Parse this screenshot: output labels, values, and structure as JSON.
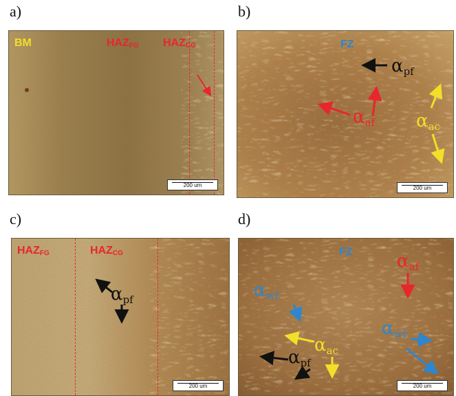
{
  "panels": {
    "a": {
      "letter": "a)",
      "labels": {
        "bm": {
          "base": "BM",
          "sub": ""
        },
        "haz_fg": {
          "base": "HAZ",
          "sub": "FG"
        },
        "haz_cg": {
          "base": "HAZ",
          "sub": "CG"
        }
      },
      "scale": "200 um"
    },
    "b": {
      "letter": "b)",
      "labels": {
        "fz": "FZ",
        "alpha_pf": {
          "base": "α",
          "sub": "pf"
        },
        "alpha_af": {
          "base": "α",
          "sub": "af"
        },
        "alpha_ac": {
          "base": "α",
          "sub": "ac"
        }
      },
      "scale": "200 um"
    },
    "c": {
      "letter": "c)",
      "labels": {
        "haz_fg": {
          "base": "HAZ",
          "sub": "FG"
        },
        "haz_cg": {
          "base": "HAZ",
          "sub": "CG"
        },
        "alpha_pf": {
          "base": "α",
          "sub": "pf"
        }
      },
      "scale": "200 um"
    },
    "d": {
      "letter": "d)",
      "labels": {
        "fz": "FZ",
        "alpha_af": {
          "base": "α",
          "sub": "af"
        },
        "alpha_wf_1": {
          "base": "α",
          "sub": "wf"
        },
        "alpha_wf_2": {
          "base": "α",
          "sub": "wf"
        },
        "alpha_ac": {
          "base": "α",
          "sub": "ac"
        },
        "alpha_pf": {
          "base": "α",
          "sub": "pf"
        }
      },
      "scale": "200 um"
    }
  },
  "colors": {
    "red": "#e8262e",
    "yellow": "#f2df2a",
    "blue": "#2d86d0",
    "black": "#111111"
  }
}
